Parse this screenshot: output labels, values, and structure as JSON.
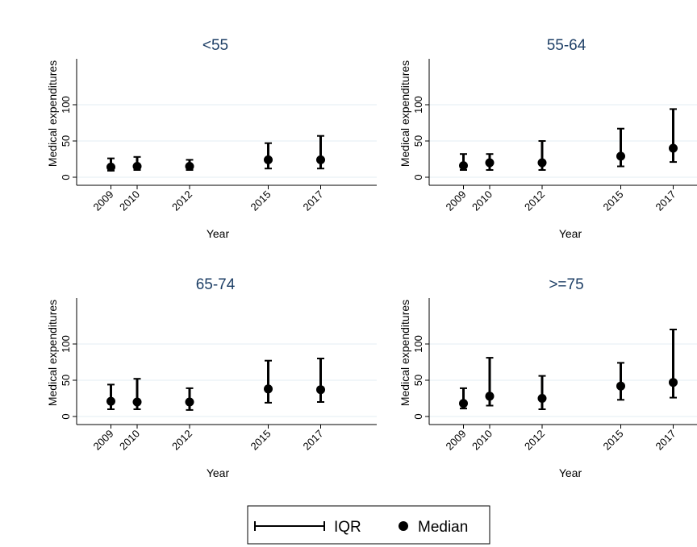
{
  "chart_data": [
    {
      "type": "errorbar",
      "title": "<55",
      "xlabel": "Year",
      "ylabel": "Medical expenditures",
      "x": [
        2009,
        2010,
        2012,
        2015,
        2017
      ],
      "x_tick_labels": [
        "2009",
        "2010",
        "2012",
        "2015",
        "2017"
      ],
      "y_ticks": [
        0,
        50,
        100
      ],
      "y_tick_labels": [
        "0",
        "50",
        "100"
      ],
      "ylim": [
        -10,
        160
      ],
      "series": [
        {
          "name": "Median",
          "values": [
            14,
            15,
            15,
            24,
            24
          ]
        },
        {
          "name": "IQR",
          "lower": [
            9,
            10,
            10,
            12,
            12
          ],
          "upper": [
            26,
            28,
            24,
            47,
            57
          ]
        }
      ],
      "grid": true
    },
    {
      "type": "errorbar",
      "title": "55-64",
      "xlabel": "Year",
      "ylabel": "Medical expenditures",
      "x": [
        2009,
        2010,
        2012,
        2015,
        2017
      ],
      "x_tick_labels": [
        "2009",
        "2010",
        "2012",
        "2015",
        "2017"
      ],
      "y_ticks": [
        0,
        50,
        100
      ],
      "y_tick_labels": [
        "0",
        "50",
        "100"
      ],
      "ylim": [
        -10,
        160
      ],
      "series": [
        {
          "name": "Median",
          "values": [
            16,
            20,
            20,
            29,
            40
          ]
        },
        {
          "name": "IQR",
          "lower": [
            10,
            10,
            10,
            15,
            21
          ],
          "upper": [
            32,
            32,
            50,
            67,
            94
          ]
        }
      ],
      "grid": true
    },
    {
      "type": "errorbar",
      "title": "65-74",
      "xlabel": "Year",
      "ylabel": "Medical expenditures",
      "x": [
        2009,
        2010,
        2012,
        2015,
        2017
      ],
      "x_tick_labels": [
        "2009",
        "2010",
        "2012",
        "2015",
        "2017"
      ],
      "y_ticks": [
        0,
        50,
        100
      ],
      "y_tick_labels": [
        "0",
        "50",
        "100"
      ],
      "ylim": [
        -10,
        160
      ],
      "series": [
        {
          "name": "Median",
          "values": [
            21,
            20,
            20,
            38,
            37
          ]
        },
        {
          "name": "IQR",
          "lower": [
            10,
            10,
            9,
            19,
            20
          ],
          "upper": [
            44,
            52,
            39,
            77,
            80
          ]
        }
      ],
      "grid": true
    },
    {
      "type": "errorbar",
      "title": ">=75",
      "xlabel": "Year",
      "ylabel": "Medical expenditures",
      "x": [
        2009,
        2010,
        2012,
        2015,
        2017
      ],
      "x_tick_labels": [
        "2009",
        "2010",
        "2012",
        "2015",
        "2017"
      ],
      "y_ticks": [
        0,
        50,
        100
      ],
      "y_tick_labels": [
        "0",
        "50",
        "100"
      ],
      "ylim": [
        -10,
        160
      ],
      "series": [
        {
          "name": "Median",
          "values": [
            18,
            28,
            25,
            42,
            47
          ]
        },
        {
          "name": "IQR",
          "lower": [
            11,
            15,
            10,
            23,
            26
          ],
          "upper": [
            39,
            81,
            56,
            74,
            120
          ]
        }
      ],
      "grid": true
    }
  ],
  "legend": {
    "placement": "bottom",
    "items": [
      {
        "label": "IQR",
        "symbol": "capped-line"
      },
      {
        "label": "Median",
        "symbol": "filled-circle"
      }
    ]
  },
  "colors": {
    "title": "#1e3f66",
    "marks": "#000000",
    "grid": "#e3eef3",
    "background": "#ffffff"
  }
}
